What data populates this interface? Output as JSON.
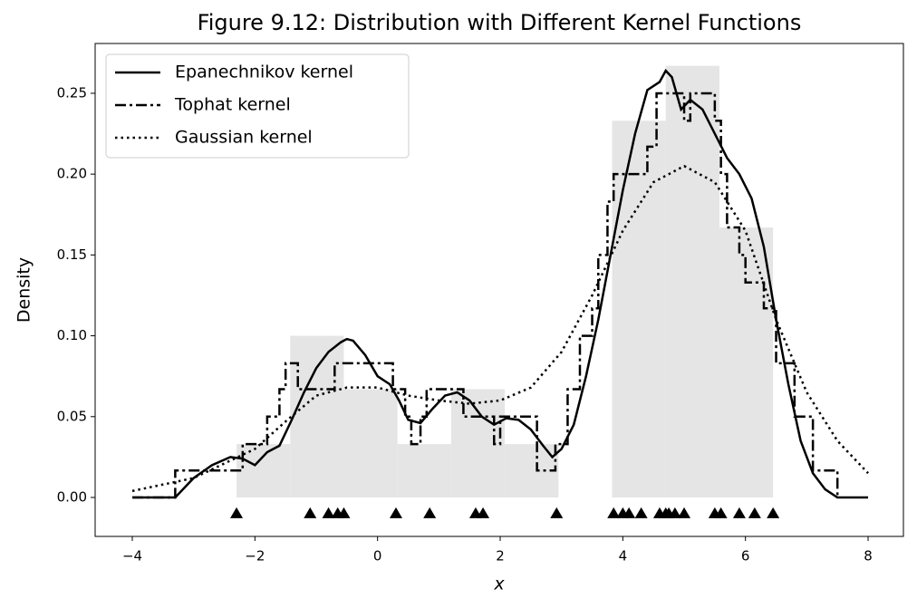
{
  "chart_data": {
    "type": "line",
    "title": "Figure 9.12: Distribution with Different Kernel Functions",
    "xlabel": "x",
    "ylabel": "Density",
    "xlim": [
      -4.606,
      8.576
    ],
    "ylim": [
      -0.0241,
      0.2808
    ],
    "xticks": [
      {
        "value": -4,
        "label": "−4"
      },
      {
        "value": -2,
        "label": "−2"
      },
      0,
      2,
      4,
      6,
      8
    ],
    "yticks": [
      {
        "value": 0,
        "label": "0.00"
      },
      {
        "value": 0.05,
        "label": "0.05"
      },
      {
        "value": 0.1,
        "label": "0.10"
      },
      {
        "value": 0.15,
        "label": "0.15"
      },
      {
        "value": 0.2,
        "label": "0.20"
      },
      {
        "value": 0.25,
        "label": "0.25"
      }
    ],
    "legend": "upper left",
    "histogram": {
      "color": "#e5e5e5",
      "bins": [
        -2.3,
        -1.425,
        -0.55,
        0.325,
        1.2,
        2.075,
        2.95,
        3.825,
        4.7,
        5.575,
        6.45
      ],
      "values": [
        0.033,
        0.1,
        0.067,
        0.033,
        0.067,
        0.033,
        0,
        0.233,
        0.267,
        0.167
      ]
    },
    "rug": {
      "color": "#000000",
      "y": -0.01,
      "x": [
        -2.3,
        -1.1,
        -0.8,
        -0.65,
        -0.55,
        0.3,
        0.85,
        1.6,
        1.72,
        2.92,
        3.85,
        4.0,
        4.1,
        4.3,
        4.6,
        4.7,
        4.75,
        4.85,
        5.0,
        5.5,
        5.6,
        5.9,
        6.15,
        6.45
      ]
    },
    "series": [
      {
        "name": "Epanechnikov kernel",
        "color": "#000000",
        "dash": "solid",
        "x": [
          -4,
          -3.3,
          -3,
          -2.7,
          -2.4,
          -2.2,
          -2,
          -1.8,
          -1.6,
          -1.4,
          -1.2,
          -1,
          -0.8,
          -0.6,
          -0.5,
          -0.4,
          -0.2,
          0,
          0.2,
          0.35,
          0.5,
          0.7,
          0.9,
          1.1,
          1.3,
          1.5,
          1.7,
          1.9,
          2.1,
          2.3,
          2.5,
          2.7,
          2.85,
          3,
          3.2,
          3.4,
          3.6,
          3.8,
          4,
          4.2,
          4.4,
          4.6,
          4.7,
          4.8,
          4.95,
          5.1,
          5.3,
          5.5,
          5.7,
          5.9,
          6.1,
          6.3,
          6.5,
          6.7,
          6.9,
          7.1,
          7.3,
          7.5,
          8
        ],
        "values": [
          0,
          0,
          0.012,
          0.02,
          0.025,
          0.024,
          0.02,
          0.028,
          0.032,
          0.048,
          0.065,
          0.08,
          0.09,
          0.096,
          0.098,
          0.097,
          0.088,
          0.075,
          0.07,
          0.06,
          0.048,
          0.046,
          0.055,
          0.063,
          0.065,
          0.06,
          0.05,
          0.045,
          0.049,
          0.048,
          0.042,
          0.032,
          0.025,
          0.03,
          0.045,
          0.075,
          0.11,
          0.15,
          0.19,
          0.225,
          0.252,
          0.257,
          0.264,
          0.26,
          0.24,
          0.246,
          0.24,
          0.225,
          0.21,
          0.2,
          0.185,
          0.155,
          0.11,
          0.07,
          0.035,
          0.015,
          0.005,
          0,
          0
        ]
      },
      {
        "name": "Tophat kernel",
        "color": "#000000",
        "dash": "dashdot",
        "x": [
          -4,
          -3.3,
          -3.3,
          -2.2,
          -2.2,
          -1.8,
          -1.8,
          -1.6,
          -1.6,
          -1.5,
          -1.5,
          -1.3,
          -1.3,
          -0.7,
          -0.7,
          0.25,
          0.25,
          0.45,
          0.45,
          0.55,
          0.55,
          0.7,
          0.7,
          0.8,
          0.8,
          1.4,
          1.4,
          1.9,
          1.9,
          2.0,
          2.0,
          2.6,
          2.6,
          2.9,
          2.9,
          3.1,
          3.1,
          3.3,
          3.3,
          3.5,
          3.5,
          3.6,
          3.6,
          3.75,
          3.75,
          3.85,
          3.85,
          4.4,
          4.4,
          4.55,
          4.55,
          5.0,
          5.0,
          5.1,
          5.1,
          5.5,
          5.5,
          5.6,
          5.6,
          5.7,
          5.7,
          5.9,
          5.9,
          6.0,
          6.0,
          6.3,
          6.3,
          6.5,
          6.5,
          6.8,
          6.8,
          7.1,
          7.1,
          7.5,
          7.5
        ],
        "values": [
          0,
          0,
          0.0167,
          0.0167,
          0.033,
          0.033,
          0.05,
          0.05,
          0.067,
          0.067,
          0.083,
          0.083,
          0.067,
          0.067,
          0.083,
          0.083,
          0.067,
          0.067,
          0.05,
          0.05,
          0.033,
          0.033,
          0.05,
          0.05,
          0.067,
          0.067,
          0.05,
          0.05,
          0.033,
          0.033,
          0.05,
          0.05,
          0.0167,
          0.0167,
          0.033,
          0.033,
          0.067,
          0.067,
          0.1,
          0.1,
          0.117,
          0.117,
          0.15,
          0.15,
          0.183,
          0.183,
          0.2,
          0.2,
          0.217,
          0.217,
          0.25,
          0.25,
          0.233,
          0.233,
          0.25,
          0.25,
          0.233,
          0.233,
          0.2,
          0.2,
          0.167,
          0.167,
          0.15,
          0.15,
          0.133,
          0.133,
          0.117,
          0.117,
          0.083,
          0.083,
          0.05,
          0.05,
          0.0167,
          0.0167,
          0
        ]
      },
      {
        "name": "Gaussian kernel",
        "color": "#000000",
        "dash": "dotted",
        "x": [
          -4,
          -3,
          -2,
          -1.5,
          -1,
          -0.5,
          0,
          0.5,
          1,
          1.5,
          2,
          2.5,
          3,
          3.5,
          4,
          4.5,
          5,
          5.5,
          6,
          6.5,
          7,
          7.5,
          8
        ],
        "values": [
          0.004,
          0.012,
          0.03,
          0.047,
          0.063,
          0.068,
          0.068,
          0.063,
          0.06,
          0.058,
          0.06,
          0.068,
          0.09,
          0.125,
          0.165,
          0.195,
          0.205,
          0.195,
          0.165,
          0.11,
          0.065,
          0.035,
          0.015
        ]
      }
    ]
  }
}
